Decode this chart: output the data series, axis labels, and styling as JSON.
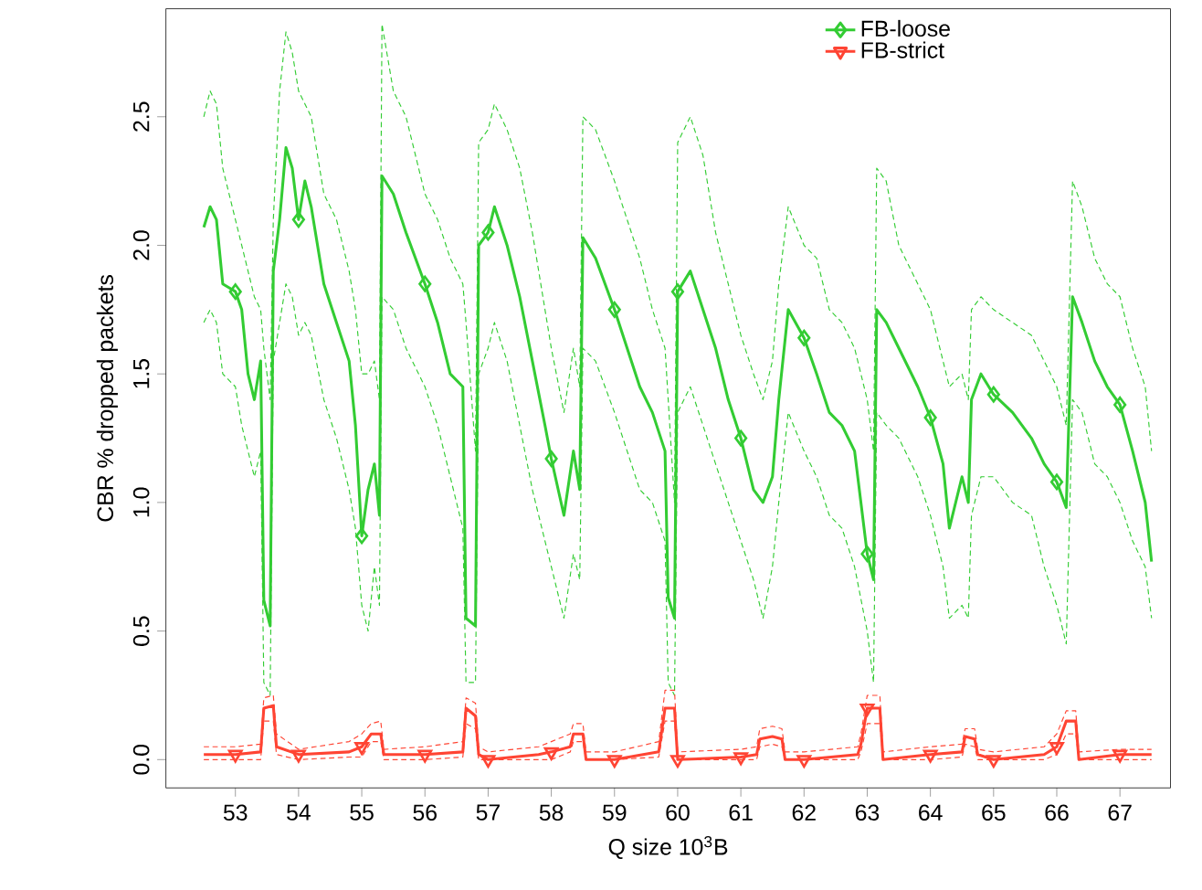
{
  "chart_data": {
    "type": "line",
    "xlabel": "Q size 10$^{3}$B",
    "ylabel": "CBR % dropped packets",
    "xlim": [
      51.9,
      67.8
    ],
    "ylim": [
      -0.11,
      2.92
    ],
    "xticks": [
      53,
      54,
      55,
      56,
      57,
      58,
      59,
      60,
      61,
      62,
      63,
      64,
      65,
      66,
      67
    ],
    "yticks": [
      {
        "value": 0,
        "label": "0.0"
      },
      {
        "value": 0.5,
        "label": "0.5"
      },
      {
        "value": 1,
        "label": "1.0"
      },
      {
        "value": 1.5,
        "label": "1.5"
      },
      {
        "value": 2,
        "label": "2.0"
      },
      {
        "value": 2.5,
        "label": "2.5"
      }
    ],
    "grid": false,
    "legend": "top right",
    "series": [
      {
        "name": "FB-loose",
        "color": "#33cc33",
        "marker": "none",
        "line_style": "solid",
        "x": [
          52.5,
          52.6,
          52.7,
          52.8,
          53.0,
          53.1,
          53.2,
          53.3,
          53.4,
          53.45,
          53.55,
          53.6,
          53.7,
          53.8,
          53.9,
          54.0,
          54.1,
          54.2,
          54.4,
          54.6,
          54.8,
          54.9,
          55.0,
          55.1,
          55.2,
          55.28,
          55.32,
          55.5,
          55.7,
          56.0,
          56.2,
          56.4,
          56.6,
          56.65,
          56.8,
          56.85,
          57.0,
          57.1,
          57.3,
          57.5,
          57.7,
          57.9,
          58.0,
          58.2,
          58.35,
          58.45,
          58.5,
          58.7,
          59.0,
          59.2,
          59.4,
          59.6,
          59.8,
          59.85,
          59.95,
          60.0,
          60.2,
          60.4,
          60.6,
          60.8,
          61.0,
          61.2,
          61.35,
          61.5,
          61.6,
          61.75,
          62.0,
          62.2,
          62.4,
          62.6,
          62.8,
          63.0,
          63.1,
          63.15,
          63.3,
          63.5,
          63.8,
          64.0,
          64.2,
          64.3,
          64.5,
          64.6,
          64.65,
          64.8,
          65.0,
          65.3,
          65.6,
          65.8,
          66.0,
          66.15,
          66.25,
          66.4,
          66.6,
          66.8,
          67.0,
          67.2,
          67.4,
          67.5
        ],
        "values": [
          2.07,
          2.15,
          2.1,
          1.85,
          1.82,
          1.75,
          1.5,
          1.4,
          1.55,
          0.62,
          0.52,
          1.9,
          2.1,
          2.38,
          2.3,
          2.1,
          2.25,
          2.15,
          1.85,
          1.7,
          1.55,
          1.3,
          0.87,
          1.05,
          1.15,
          0.95,
          2.27,
          2.2,
          2.05,
          1.85,
          1.7,
          1.5,
          1.45,
          0.55,
          0.52,
          2.0,
          2.05,
          2.15,
          2.0,
          1.8,
          1.55,
          1.3,
          1.17,
          0.95,
          1.2,
          1.05,
          2.03,
          1.95,
          1.75,
          1.6,
          1.45,
          1.35,
          1.2,
          0.63,
          0.55,
          1.82,
          1.9,
          1.75,
          1.6,
          1.4,
          1.25,
          1.05,
          1.0,
          1.1,
          1.4,
          1.75,
          1.64,
          1.5,
          1.35,
          1.3,
          1.2,
          0.8,
          0.7,
          1.75,
          1.7,
          1.6,
          1.45,
          1.33,
          1.15,
          0.9,
          1.1,
          1.0,
          1.4,
          1.5,
          1.42,
          1.35,
          1.25,
          1.15,
          1.08,
          0.98,
          1.8,
          1.7,
          1.55,
          1.45,
          1.38,
          1.2,
          1.0,
          0.77
        ]
      },
      {
        "color": "#33cc33",
        "marker": "none",
        "line_style": "dashed",
        "x": [
          52.5,
          52.6,
          52.7,
          52.8,
          53.0,
          53.1,
          53.2,
          53.3,
          53.4,
          53.45,
          53.55,
          53.6,
          53.7,
          53.8,
          53.9,
          54.0,
          54.1,
          54.2,
          54.4,
          54.6,
          54.8,
          54.9,
          55.0,
          55.1,
          55.2,
          55.28,
          55.32,
          55.5,
          55.7,
          56.0,
          56.2,
          56.4,
          56.6,
          56.65,
          56.8,
          56.85,
          57.0,
          57.1,
          57.3,
          57.5,
          57.7,
          57.9,
          58.0,
          58.2,
          58.35,
          58.45,
          58.5,
          58.7,
          59.0,
          59.2,
          59.4,
          59.6,
          59.8,
          59.85,
          59.95,
          60.0,
          60.2,
          60.4,
          60.6,
          60.8,
          61.0,
          61.2,
          61.35,
          61.5,
          61.6,
          61.75,
          62.0,
          62.2,
          62.4,
          62.6,
          62.8,
          63.0,
          63.1,
          63.15,
          63.3,
          63.5,
          63.8,
          64.0,
          64.2,
          64.3,
          64.5,
          64.6,
          64.65,
          64.8,
          65.0,
          65.3,
          65.6,
          65.8,
          66.0,
          66.15,
          66.25,
          66.4,
          66.6,
          66.8,
          67.0,
          67.2,
          67.4,
          67.5
        ],
        "values": [
          1.7,
          1.75,
          1.7,
          1.5,
          1.45,
          1.3,
          1.2,
          1.1,
          1.2,
          0.3,
          0.25,
          1.55,
          1.7,
          1.85,
          1.8,
          1.65,
          1.7,
          1.65,
          1.4,
          1.25,
          1.05,
          0.9,
          0.6,
          0.5,
          0.75,
          0.6,
          1.8,
          1.75,
          1.6,
          1.45,
          1.3,
          1.1,
          0.9,
          0.3,
          0.3,
          1.5,
          1.6,
          1.7,
          1.55,
          1.3,
          1.05,
          0.85,
          0.75,
          0.55,
          0.8,
          0.7,
          1.6,
          1.55,
          1.35,
          1.2,
          1.05,
          1.0,
          0.85,
          0.3,
          0.25,
          1.35,
          1.45,
          1.3,
          1.15,
          1.0,
          0.85,
          0.7,
          0.55,
          0.75,
          1.0,
          1.35,
          1.2,
          1.1,
          0.95,
          0.9,
          0.75,
          0.5,
          0.3,
          1.35,
          1.3,
          1.25,
          1.1,
          0.95,
          0.75,
          0.55,
          0.6,
          0.55,
          0.95,
          1.1,
          1.1,
          1.0,
          0.95,
          0.75,
          0.6,
          0.45,
          1.4,
          1.35,
          1.15,
          1.1,
          1.0,
          0.85,
          0.75,
          0.55
        ]
      },
      {
        "color": "#33cc33",
        "marker": "none",
        "line_style": "dashed",
        "x": [
          52.5,
          52.6,
          52.7,
          52.8,
          53.0,
          53.1,
          53.2,
          53.3,
          53.4,
          53.45,
          53.55,
          53.6,
          53.7,
          53.8,
          53.9,
          54.0,
          54.1,
          54.2,
          54.4,
          54.6,
          54.8,
          54.9,
          55.0,
          55.1,
          55.2,
          55.28,
          55.32,
          55.5,
          55.7,
          56.0,
          56.2,
          56.4,
          56.6,
          56.65,
          56.8,
          56.85,
          57.0,
          57.1,
          57.3,
          57.5,
          57.7,
          57.9,
          58.0,
          58.2,
          58.35,
          58.45,
          58.5,
          58.7,
          59.0,
          59.2,
          59.4,
          59.6,
          59.8,
          59.85,
          59.95,
          60.0,
          60.2,
          60.4,
          60.6,
          60.8,
          61.0,
          61.2,
          61.35,
          61.5,
          61.6,
          61.75,
          62.0,
          62.2,
          62.4,
          62.6,
          62.8,
          63.0,
          63.1,
          63.15,
          63.3,
          63.5,
          63.8,
          64.0,
          64.2,
          64.3,
          64.5,
          64.6,
          64.65,
          64.8,
          65.0,
          65.3,
          65.6,
          65.8,
          66.0,
          66.15,
          66.25,
          66.4,
          66.6,
          66.8,
          67.0,
          67.2,
          67.4,
          67.5
        ],
        "values": [
          2.5,
          2.6,
          2.55,
          2.3,
          2.1,
          2.0,
          1.9,
          1.8,
          1.75,
          1.6,
          1.4,
          2.1,
          2.6,
          2.83,
          2.75,
          2.6,
          2.55,
          2.5,
          2.2,
          2.1,
          1.9,
          1.75,
          1.5,
          1.5,
          1.55,
          1.4,
          2.86,
          2.6,
          2.5,
          2.2,
          2.1,
          1.95,
          1.85,
          1.7,
          1.2,
          2.4,
          2.45,
          2.55,
          2.45,
          2.3,
          2.05,
          1.75,
          1.6,
          1.35,
          1.6,
          1.45,
          2.5,
          2.45,
          2.25,
          2.1,
          1.95,
          1.75,
          1.6,
          1.4,
          1.0,
          2.4,
          2.5,
          2.35,
          2.05,
          1.85,
          1.65,
          1.5,
          1.4,
          1.55,
          1.85,
          2.15,
          2.0,
          1.95,
          1.75,
          1.7,
          1.6,
          1.4,
          1.2,
          2.3,
          2.25,
          2.0,
          1.85,
          1.75,
          1.55,
          1.45,
          1.5,
          1.4,
          1.75,
          1.8,
          1.75,
          1.7,
          1.65,
          1.55,
          1.45,
          1.3,
          2.25,
          2.15,
          1.95,
          1.85,
          1.8,
          1.6,
          1.45,
          1.2
        ]
      },
      {
        "type": "scatter",
        "color": "#33cc33",
        "marker": "diamond",
        "x": [
          53,
          54,
          55,
          56,
          57,
          58,
          59,
          60,
          61,
          62,
          63,
          64,
          65,
          66,
          67
        ],
        "values": [
          1.82,
          2.1,
          0.87,
          1.85,
          2.05,
          1.17,
          1.75,
          1.82,
          1.25,
          1.64,
          0.8,
          1.33,
          1.42,
          1.08,
          1.38
        ]
      },
      {
        "name": "FB-strict",
        "color": "#ff4433",
        "marker": "none",
        "line_style": "solid",
        "x": [
          52.5,
          53.0,
          53.4,
          53.45,
          53.6,
          53.65,
          54.0,
          54.8,
          55.0,
          55.15,
          55.3,
          55.35,
          56.0,
          56.6,
          56.65,
          56.8,
          56.85,
          57.0,
          57.8,
          58.0,
          58.3,
          58.35,
          58.5,
          58.55,
          59.0,
          59.7,
          59.8,
          59.95,
          60.0,
          61.0,
          61.25,
          61.3,
          61.5,
          61.65,
          61.7,
          62.0,
          62.85,
          62.9,
          63.0,
          63.2,
          63.25,
          64.0,
          64.5,
          64.55,
          64.7,
          64.75,
          65.0,
          65.8,
          66.0,
          66.15,
          66.3,
          66.35,
          67.0,
          67.5
        ],
        "values": [
          0.02,
          0.02,
          0.03,
          0.2,
          0.21,
          0.05,
          0.02,
          0.03,
          0.05,
          0.1,
          0.1,
          0.02,
          0.02,
          0.03,
          0.2,
          0.17,
          0.02,
          0.0,
          0.02,
          0.03,
          0.05,
          0.1,
          0.1,
          0.0,
          0.0,
          0.03,
          0.2,
          0.2,
          0.0,
          0.01,
          0.02,
          0.08,
          0.09,
          0.08,
          0.0,
          0.0,
          0.02,
          0.06,
          0.2,
          0.2,
          0.0,
          0.02,
          0.03,
          0.09,
          0.08,
          0.02,
          0.0,
          0.02,
          0.05,
          0.15,
          0.15,
          0.0,
          0.02,
          0.02
        ]
      },
      {
        "color": "#ff4433",
        "marker": "none",
        "line_style": "dashed",
        "x": [
          52.5,
          53.0,
          53.4,
          53.45,
          53.6,
          53.65,
          54.0,
          54.8,
          55.0,
          55.15,
          55.3,
          55.35,
          56.0,
          56.6,
          56.65,
          56.8,
          56.85,
          57.0,
          57.8,
          58.0,
          58.3,
          58.35,
          58.5,
          58.55,
          59.0,
          59.7,
          59.8,
          59.95,
          60.0,
          61.0,
          61.25,
          61.3,
          61.5,
          61.65,
          61.7,
          62.0,
          62.85,
          62.9,
          63.0,
          63.2,
          63.25,
          64.0,
          64.5,
          64.55,
          64.7,
          64.75,
          65.0,
          65.8,
          66.0,
          66.15,
          66.3,
          66.35,
          67.0,
          67.5
        ],
        "values": [
          0.0,
          0.0,
          0.0,
          0.15,
          0.15,
          0.02,
          0.0,
          0.01,
          0.01,
          0.07,
          0.07,
          0.0,
          0.0,
          0.01,
          0.14,
          0.12,
          0.0,
          0.0,
          0.0,
          0.0,
          0.03,
          0.07,
          0.07,
          0.0,
          0.0,
          0.01,
          0.15,
          0.15,
          0.0,
          0.0,
          0.0,
          0.05,
          0.06,
          0.05,
          0.0,
          0.0,
          0.0,
          0.03,
          0.14,
          0.14,
          0.0,
          0.0,
          0.01,
          0.06,
          0.05,
          0.0,
          0.0,
          0.0,
          0.02,
          0.1,
          0.1,
          0.0,
          0.0,
          0.0
        ]
      },
      {
        "color": "#ff4433",
        "marker": "none",
        "line_style": "dashed",
        "x": [
          52.5,
          53.0,
          53.4,
          53.45,
          53.6,
          53.65,
          54.0,
          54.8,
          55.0,
          55.15,
          55.3,
          55.35,
          56.0,
          56.6,
          56.65,
          56.8,
          56.85,
          57.0,
          57.8,
          58.0,
          58.3,
          58.35,
          58.5,
          58.55,
          59.0,
          59.7,
          59.8,
          59.95,
          60.0,
          61.0,
          61.25,
          61.3,
          61.5,
          61.65,
          61.7,
          62.0,
          62.85,
          62.9,
          63.0,
          63.2,
          63.25,
          64.0,
          64.5,
          64.55,
          64.7,
          64.75,
          65.0,
          65.8,
          66.0,
          66.15,
          66.3,
          66.35,
          67.0,
          67.5
        ],
        "values": [
          0.05,
          0.05,
          0.06,
          0.24,
          0.25,
          0.1,
          0.04,
          0.07,
          0.1,
          0.14,
          0.15,
          0.04,
          0.05,
          0.07,
          0.24,
          0.22,
          0.05,
          0.03,
          0.05,
          0.07,
          0.1,
          0.14,
          0.14,
          0.03,
          0.03,
          0.07,
          0.27,
          0.27,
          0.03,
          0.04,
          0.05,
          0.12,
          0.13,
          0.12,
          0.03,
          0.03,
          0.05,
          0.1,
          0.25,
          0.25,
          0.03,
          0.05,
          0.06,
          0.12,
          0.12,
          0.04,
          0.03,
          0.05,
          0.1,
          0.19,
          0.19,
          0.03,
          0.04,
          0.04
        ]
      },
      {
        "type": "scatter",
        "color": "#ff4433",
        "marker": "triangle",
        "x": [
          53,
          54,
          55,
          56,
          57,
          58,
          59,
          60,
          61,
          62,
          63,
          64,
          65,
          66,
          67
        ],
        "values": [
          0.02,
          0.02,
          0.05,
          0.02,
          0.0,
          0.03,
          0.0,
          0.0,
          0.01,
          0.0,
          0.2,
          0.02,
          0.0,
          0.05,
          0.02
        ]
      }
    ]
  }
}
